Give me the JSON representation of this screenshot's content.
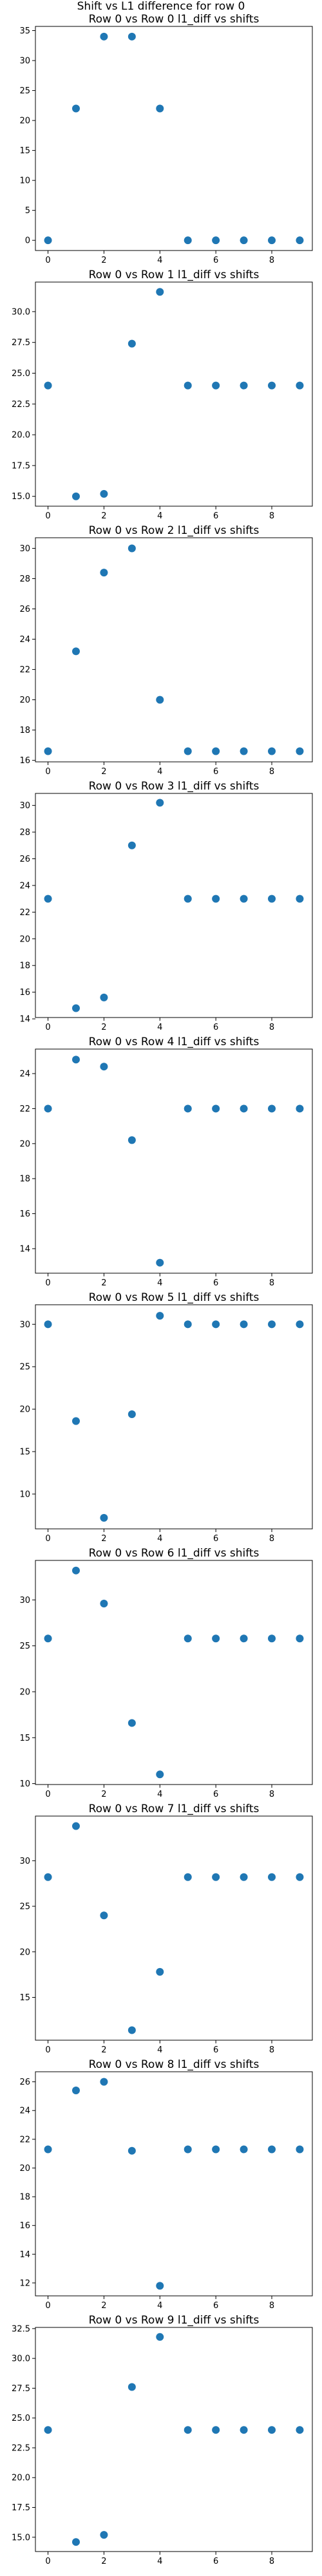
{
  "figure": {
    "suptitle": "Shift vs L1 difference for row 0",
    "marker_color": "#1f77b4"
  },
  "chart_data": [
    {
      "type": "scatter",
      "title": "Row 0 vs Row 0 l1_diff vs shifts",
      "x": [
        0,
        1,
        2,
        3,
        4,
        5,
        6,
        7,
        8,
        9
      ],
      "y": [
        0,
        22,
        34,
        34,
        22,
        0,
        0,
        0,
        0,
        0
      ],
      "xlim": [
        -0.45,
        9.45
      ],
      "ylim": [
        -1.7,
        35.7
      ],
      "xticks": [
        0,
        2,
        4,
        6,
        8
      ],
      "yticks": [
        0,
        5,
        10,
        15,
        20,
        25,
        30,
        35
      ],
      "xticklabels": [
        "0",
        "2",
        "4",
        "6",
        "8"
      ],
      "yticklabels": [
        "0",
        "5",
        "10",
        "15",
        "20",
        "25",
        "30",
        "35"
      ]
    },
    {
      "type": "scatter",
      "title": "Row 0 vs Row 1 l1_diff vs shifts",
      "x": [
        0,
        1,
        2,
        3,
        4,
        5,
        6,
        7,
        8,
        9
      ],
      "y": [
        24,
        15,
        15.2,
        27.4,
        31.6,
        24,
        24,
        24,
        24,
        24
      ],
      "xlim": [
        -0.45,
        9.45
      ],
      "ylim": [
        14.2,
        32.4
      ],
      "xticks": [
        0,
        2,
        4,
        6,
        8
      ],
      "yticks": [
        15,
        17.5,
        20,
        22.5,
        25,
        27.5,
        30
      ],
      "xticklabels": [
        "0",
        "2",
        "4",
        "6",
        "8"
      ],
      "yticklabels": [
        "15.0",
        "17.5",
        "20.0",
        "22.5",
        "25.0",
        "27.5",
        "30.0"
      ]
    },
    {
      "type": "scatter",
      "title": "Row 0 vs Row 2 l1_diff vs shifts",
      "x": [
        0,
        1,
        2,
        3,
        4,
        5,
        6,
        7,
        8,
        9
      ],
      "y": [
        16.6,
        23.2,
        28.4,
        30,
        20,
        16.6,
        16.6,
        16.6,
        16.6,
        16.6
      ],
      "xlim": [
        -0.45,
        9.45
      ],
      "ylim": [
        15.9,
        30.7
      ],
      "xticks": [
        0,
        2,
        4,
        6,
        8
      ],
      "yticks": [
        16,
        18,
        20,
        22,
        24,
        26,
        28,
        30
      ],
      "xticklabels": [
        "0",
        "2",
        "4",
        "6",
        "8"
      ],
      "yticklabels": [
        "16",
        "18",
        "20",
        "22",
        "24",
        "26",
        "28",
        "30"
      ]
    },
    {
      "type": "scatter",
      "title": "Row 0 vs Row 3 l1_diff vs shifts",
      "x": [
        0,
        1,
        2,
        3,
        4,
        5,
        6,
        7,
        8,
        9
      ],
      "y": [
        23,
        14.8,
        15.6,
        27,
        30.2,
        23,
        23,
        23,
        23,
        23
      ],
      "xlim": [
        -0.45,
        9.45
      ],
      "ylim": [
        14.1,
        30.9
      ],
      "xticks": [
        0,
        2,
        4,
        6,
        8
      ],
      "yticks": [
        14,
        16,
        18,
        20,
        22,
        24,
        26,
        28,
        30
      ],
      "xticklabels": [
        "0",
        "2",
        "4",
        "6",
        "8"
      ],
      "yticklabels": [
        "14",
        "16",
        "18",
        "20",
        "22",
        "24",
        "26",
        "28",
        "30"
      ]
    },
    {
      "type": "scatter",
      "title": "Row 0 vs Row 4 l1_diff vs shifts",
      "x": [
        0,
        1,
        2,
        3,
        4,
        5,
        6,
        7,
        8,
        9
      ],
      "y": [
        22,
        24.8,
        24.4,
        20.2,
        13.2,
        22,
        22,
        22,
        22,
        22
      ],
      "xlim": [
        -0.45,
        9.45
      ],
      "ylim": [
        12.6,
        25.4
      ],
      "xticks": [
        0,
        2,
        4,
        6,
        8
      ],
      "yticks": [
        14,
        16,
        18,
        20,
        22,
        24
      ],
      "xticklabels": [
        "0",
        "2",
        "4",
        "6",
        "8"
      ],
      "yticklabels": [
        "14",
        "16",
        "18",
        "20",
        "22",
        "24"
      ]
    },
    {
      "type": "scatter",
      "title": "Row 0 vs Row 5 l1_diff vs shifts",
      "x": [
        0,
        1,
        2,
        3,
        4,
        5,
        6,
        7,
        8,
        9
      ],
      "y": [
        30,
        18.6,
        7.2,
        19.4,
        31,
        30,
        30,
        30,
        30,
        30
      ],
      "xlim": [
        -0.45,
        9.45
      ],
      "ylim": [
        5.9,
        32.3
      ],
      "xticks": [
        0,
        2,
        4,
        6,
        8
      ],
      "yticks": [
        10,
        15,
        20,
        25,
        30
      ],
      "xticklabels": [
        "0",
        "2",
        "4",
        "6",
        "8"
      ],
      "yticklabels": [
        "10",
        "15",
        "20",
        "25",
        "30"
      ]
    },
    {
      "type": "scatter",
      "title": "Row 0 vs Row 6 l1_diff vs shifts",
      "x": [
        0,
        1,
        2,
        3,
        4,
        5,
        6,
        7,
        8,
        9
      ],
      "y": [
        25.8,
        33.2,
        29.6,
        16.6,
        11,
        25.8,
        25.8,
        25.8,
        25.8,
        25.8
      ],
      "xlim": [
        -0.45,
        9.45
      ],
      "ylim": [
        9.9,
        34.3
      ],
      "xticks": [
        0,
        2,
        4,
        6,
        8
      ],
      "yticks": [
        10,
        15,
        20,
        25,
        30
      ],
      "xticklabels": [
        "0",
        "2",
        "4",
        "6",
        "8"
      ],
      "yticklabels": [
        "10",
        "15",
        "20",
        "25",
        "30"
      ]
    },
    {
      "type": "scatter",
      "title": "Row 0 vs Row 7 l1_diff vs shifts",
      "x": [
        0,
        1,
        2,
        3,
        4,
        5,
        6,
        7,
        8,
        9
      ],
      "y": [
        28.2,
        33.8,
        24,
        11.4,
        17.8,
        28.2,
        28.2,
        28.2,
        28.2,
        28.2
      ],
      "xlim": [
        -0.45,
        9.45
      ],
      "ylim": [
        10.3,
        34.9
      ],
      "xticks": [
        0,
        2,
        4,
        6,
        8
      ],
      "yticks": [
        15,
        20,
        25,
        30
      ],
      "xticklabels": [
        "0",
        "2",
        "4",
        "6",
        "8"
      ],
      "yticklabels": [
        "15",
        "20",
        "25",
        "30"
      ]
    },
    {
      "type": "scatter",
      "title": "Row 0 vs Row 8 l1_diff vs shifts",
      "x": [
        0,
        1,
        2,
        3,
        4,
        5,
        6,
        7,
        8,
        9
      ],
      "y": [
        21.3,
        25.4,
        26,
        21.2,
        11.8,
        21.3,
        21.3,
        21.3,
        21.3,
        21.3
      ],
      "xlim": [
        -0.45,
        9.45
      ],
      "ylim": [
        11.1,
        26.7
      ],
      "xticks": [
        0,
        2,
        4,
        6,
        8
      ],
      "yticks": [
        12,
        14,
        16,
        18,
        20,
        22,
        24,
        26
      ],
      "xticklabels": [
        "0",
        "2",
        "4",
        "6",
        "8"
      ],
      "yticklabels": [
        "12",
        "14",
        "16",
        "18",
        "20",
        "22",
        "24",
        "26"
      ]
    },
    {
      "type": "scatter",
      "title": "Row 0 vs Row 9 l1_diff vs shifts",
      "x": [
        0,
        1,
        2,
        3,
        4,
        5,
        6,
        7,
        8,
        9
      ],
      "y": [
        24,
        14.6,
        15.2,
        27.6,
        31.8,
        24,
        24,
        24,
        24,
        24
      ],
      "xlim": [
        -0.45,
        9.45
      ],
      "ylim": [
        13.8,
        32.6
      ],
      "xticks": [
        0,
        2,
        4,
        6,
        8
      ],
      "yticks": [
        15,
        17.5,
        20,
        22.5,
        25,
        27.5,
        30,
        32.5
      ],
      "xticklabels": [
        "0",
        "2",
        "4",
        "6",
        "8"
      ],
      "yticklabels": [
        "15.0",
        "17.5",
        "20.0",
        "22.5",
        "25.0",
        "27.5",
        "30.0",
        "32.5"
      ]
    }
  ]
}
